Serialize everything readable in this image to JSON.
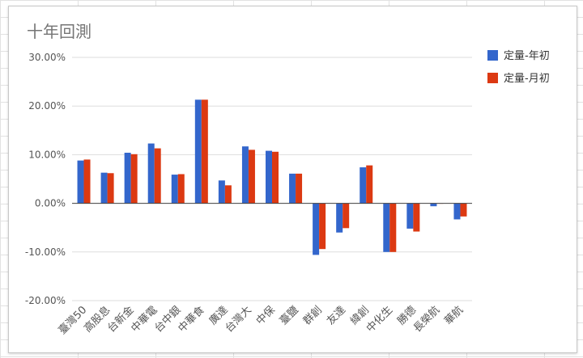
{
  "chart_data": {
    "type": "bar",
    "title": "十年回測",
    "categories": [
      "臺灣50",
      "高股息",
      "台新金",
      "中華電",
      "台中銀",
      "中華食",
      "廣達",
      "台灣大",
      "中保",
      "臺鹽",
      "群創",
      "友達",
      "緯創",
      "中化生",
      "勝德",
      "長榮航",
      "華航"
    ],
    "series": [
      {
        "name": "定量-年初",
        "color": "#3366cc",
        "values": [
          8.8,
          6.3,
          10.4,
          12.3,
          5.9,
          21.3,
          4.7,
          11.7,
          10.8,
          6.1,
          -10.6,
          -6.0,
          7.4,
          -10.0,
          -5.2,
          -0.6,
          -3.3
        ]
      },
      {
        "name": "定量-月初",
        "color": "#dc3912",
        "values": [
          9.0,
          6.2,
          10.1,
          11.3,
          6.0,
          21.3,
          3.7,
          11.0,
          10.6,
          6.1,
          -9.4,
          -5.1,
          7.8,
          -10.0,
          -5.8,
          0.0,
          -2.7
        ]
      }
    ],
    "yticks": [
      "30.00%",
      "20.00%",
      "10.00%",
      "0.00%",
      "-10.00%",
      "-20.00%"
    ],
    "ylim": [
      -20,
      30
    ],
    "grid": true,
    "legend_position": "right"
  }
}
